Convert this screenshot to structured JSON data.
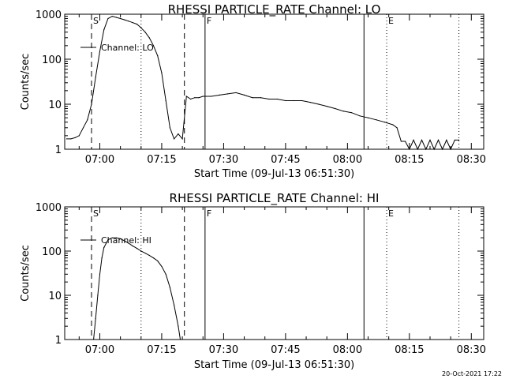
{
  "timestamp": "20-Oct-2021 17:22",
  "chart_data": [
    {
      "type": "line",
      "title": "RHESSI PARTICLE_RATE Channel: LO",
      "xlabel": "Start Time (09-Jul-13 06:51:30)",
      "ylabel": "Counts/sec",
      "y_scale": "log",
      "ylim": [
        1,
        1000
      ],
      "y_ticks": [
        1,
        10,
        100,
        1000
      ],
      "x_ticks": [
        "07:00",
        "07:15",
        "07:30",
        "07:45",
        "08:00",
        "08:15",
        "08:30"
      ],
      "xlim": [
        "06:51:30",
        "08:33:00"
      ],
      "legend": "top-left",
      "series": [
        {
          "name": "Channel: LO",
          "x": [
            "06:52",
            "06:53",
            "06:54",
            "06:55",
            "06:56",
            "06:57",
            "06:58",
            "06:59",
            "07:00",
            "07:01",
            "07:02",
            "07:03",
            "07:04",
            "07:05",
            "07:06",
            "07:07",
            "07:08",
            "07:09",
            "07:10",
            "07:11",
            "07:12",
            "07:13",
            "07:14",
            "07:15",
            "07:16",
            "07:17",
            "07:18",
            "07:19",
            "07:20",
            "07:21",
            "07:22",
            "07:23",
            "07:24",
            "07:25",
            "07:27",
            "07:29",
            "07:31",
            "07:33",
            "07:35",
            "07:37",
            "07:39",
            "07:41",
            "07:43",
            "07:45",
            "07:47",
            "07:49",
            "07:51",
            "07:53",
            "07:55",
            "07:57",
            "07:59",
            "08:01",
            "08:03",
            "08:05",
            "08:07",
            "08:09",
            "08:11",
            "08:12",
            "08:13",
            "08:14",
            "08:15",
            "08:16",
            "08:17",
            "08:18",
            "08:19",
            "08:20",
            "08:21",
            "08:22",
            "08:23",
            "08:24",
            "08:25",
            "08:26",
            "08:27"
          ],
          "values": [
            1.7,
            1.7,
            1.8,
            2.0,
            3.0,
            4.5,
            10,
            40,
            150,
            450,
            800,
            900,
            850,
            800,
            750,
            700,
            650,
            600,
            500,
            400,
            300,
            200,
            120,
            50,
            12,
            3,
            1.7,
            2.2,
            1.7,
            15,
            13,
            14,
            14,
            15,
            15,
            16,
            17,
            18,
            16,
            14,
            14,
            13,
            13,
            12,
            12,
            12,
            11,
            10,
            9,
            8,
            7,
            6.5,
            5.5,
            5,
            4.5,
            4,
            3.5,
            3,
            1.5,
            1.5,
            1,
            1.6,
            1,
            1.6,
            1,
            1.6,
            1,
            1.6,
            1,
            1.6,
            1,
            1.6,
            1.6
          ]
        }
      ],
      "vlines": [
        {
          "time": "06:58:00",
          "style": "dashed",
          "label": "S"
        },
        {
          "time": "07:10:00",
          "style": "dotted",
          "label": ""
        },
        {
          "time": "07:20:30",
          "style": "dashed",
          "label": ""
        },
        {
          "time": "07:25:30",
          "style": "solid",
          "label": "F"
        },
        {
          "time": "08:04:00",
          "style": "solid",
          "label": ""
        },
        {
          "time": "08:09:30",
          "style": "dotted",
          "label": "E"
        },
        {
          "time": "08:27:00",
          "style": "dotted",
          "label": ""
        }
      ]
    },
    {
      "type": "line",
      "title": "RHESSI PARTICLE_RATE Channel: HI",
      "xlabel": "Start Time (09-Jul-13 06:51:30)",
      "ylabel": "Counts/sec",
      "y_scale": "log",
      "ylim": [
        1,
        1000
      ],
      "y_ticks": [
        1,
        10,
        100,
        1000
      ],
      "x_ticks": [
        "07:00",
        "07:15",
        "07:30",
        "07:45",
        "08:00",
        "08:15",
        "08:30"
      ],
      "xlim": [
        "06:51:30",
        "08:33:00"
      ],
      "legend": "top-left",
      "series": [
        {
          "name": "Channel: HI",
          "x": [
            "06:58:30",
            "06:59",
            "06:59:30",
            "07:00",
            "07:00:30",
            "07:01",
            "07:02",
            "07:03",
            "07:04",
            "07:05",
            "07:06",
            "07:07",
            "07:08",
            "07:09",
            "07:10",
            "07:11",
            "07:12",
            "07:13",
            "07:14",
            "07:15",
            "07:16",
            "07:17",
            "07:18",
            "07:19",
            "07:19:30"
          ],
          "values": [
            1,
            3,
            10,
            30,
            70,
            120,
            180,
            200,
            200,
            190,
            170,
            150,
            130,
            115,
            100,
            90,
            80,
            70,
            60,
            45,
            30,
            15,
            6,
            2,
            1
          ]
        }
      ],
      "vlines": [
        {
          "time": "06:58:00",
          "style": "dashed",
          "label": "S"
        },
        {
          "time": "07:10:00",
          "style": "dotted",
          "label": ""
        },
        {
          "time": "07:20:30",
          "style": "dashed",
          "label": ""
        },
        {
          "time": "07:25:30",
          "style": "solid",
          "label": "F"
        },
        {
          "time": "08:04:00",
          "style": "solid",
          "label": ""
        },
        {
          "time": "08:09:30",
          "style": "dotted",
          "label": "E"
        },
        {
          "time": "08:27:00",
          "style": "dotted",
          "label": ""
        }
      ]
    }
  ]
}
